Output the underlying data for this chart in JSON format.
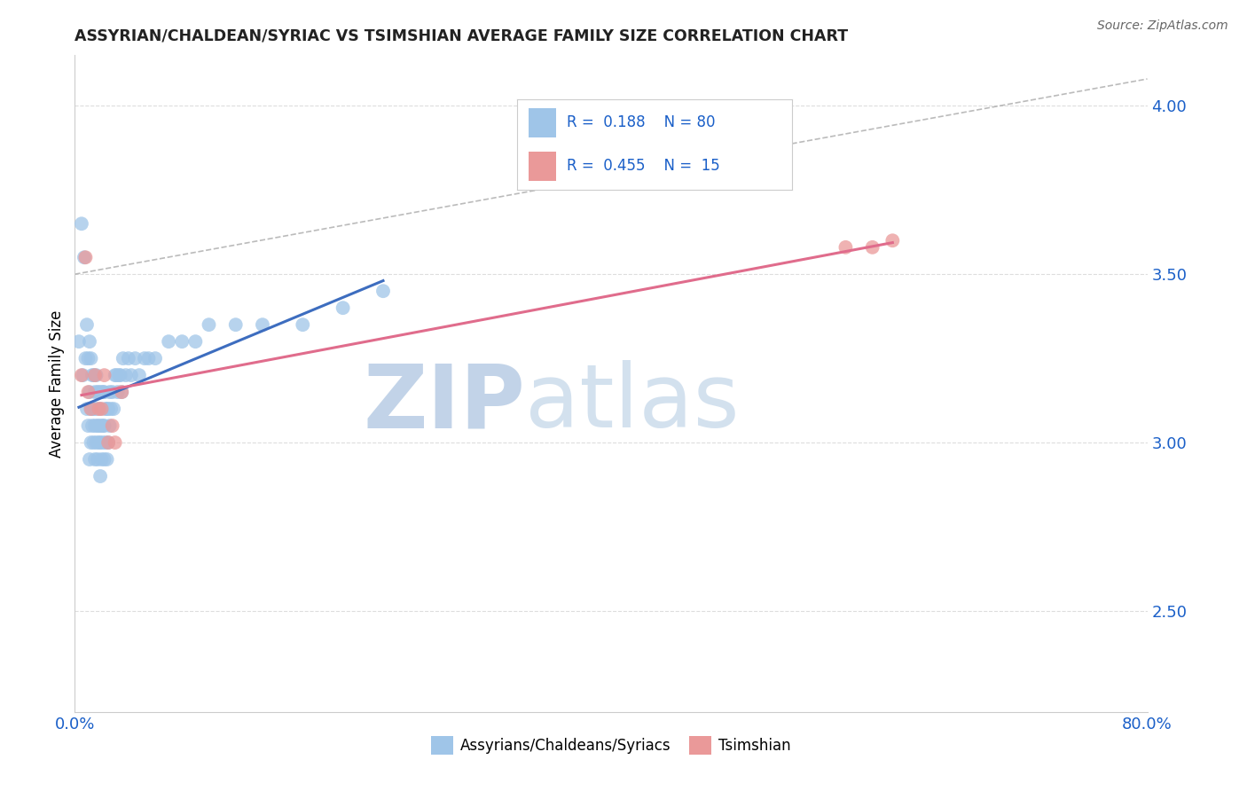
{
  "title": "ASSYRIAN/CHALDEAN/SYRIAC VS TSIMSHIAN AVERAGE FAMILY SIZE CORRELATION CHART",
  "source": "Source: ZipAtlas.com",
  "ylabel": "Average Family Size",
  "xlim": [
    0.0,
    0.8
  ],
  "ylim": [
    2.2,
    4.15
  ],
  "yticks_right": [
    2.5,
    3.0,
    3.5,
    4.0
  ],
  "blue_R": 0.188,
  "blue_N": 80,
  "pink_R": 0.455,
  "pink_N": 15,
  "blue_color": "#9fc5e8",
  "pink_color": "#ea9999",
  "blue_line_color": "#3d6dbf",
  "pink_line_color": "#e06c8c",
  "legend_label_blue": "Assyrians/Chaldeans/Syriacs",
  "legend_label_pink": "Tsimshian",
  "blue_scatter_x": [
    0.003,
    0.005,
    0.006,
    0.007,
    0.008,
    0.009,
    0.009,
    0.01,
    0.01,
    0.011,
    0.011,
    0.011,
    0.012,
    0.012,
    0.012,
    0.013,
    0.013,
    0.013,
    0.014,
    0.014,
    0.014,
    0.015,
    0.015,
    0.015,
    0.016,
    0.016,
    0.016,
    0.017,
    0.017,
    0.017,
    0.018,
    0.018,
    0.018,
    0.019,
    0.019,
    0.019,
    0.02,
    0.02,
    0.02,
    0.021,
    0.021,
    0.021,
    0.022,
    0.022,
    0.022,
    0.023,
    0.023,
    0.024,
    0.024,
    0.025,
    0.025,
    0.026,
    0.026,
    0.027,
    0.028,
    0.029,
    0.03,
    0.031,
    0.032,
    0.033,
    0.034,
    0.035,
    0.036,
    0.038,
    0.04,
    0.042,
    0.045,
    0.048,
    0.052,
    0.055,
    0.06,
    0.07,
    0.08,
    0.09,
    0.1,
    0.12,
    0.14,
    0.17,
    0.2,
    0.23
  ],
  "blue_scatter_y": [
    3.3,
    3.65,
    3.2,
    3.55,
    3.25,
    3.1,
    3.35,
    3.05,
    3.25,
    2.95,
    3.15,
    3.3,
    3.0,
    3.1,
    3.25,
    3.05,
    3.1,
    3.2,
    3.0,
    3.1,
    3.2,
    2.95,
    3.05,
    3.15,
    3.0,
    3.1,
    3.2,
    2.95,
    3.05,
    3.15,
    3.0,
    3.05,
    3.15,
    2.9,
    3.0,
    3.1,
    2.95,
    3.05,
    3.15,
    3.0,
    3.05,
    3.15,
    2.95,
    3.05,
    3.15,
    3.0,
    3.1,
    2.95,
    3.1,
    3.0,
    3.1,
    3.05,
    3.15,
    3.1,
    3.15,
    3.1,
    3.2,
    3.2,
    3.15,
    3.2,
    3.2,
    3.15,
    3.25,
    3.2,
    3.25,
    3.2,
    3.25,
    3.2,
    3.25,
    3.25,
    3.25,
    3.3,
    3.3,
    3.3,
    3.35,
    3.35,
    3.35,
    3.35,
    3.4,
    3.45
  ],
  "pink_scatter_x": [
    0.005,
    0.008,
    0.01,
    0.012,
    0.015,
    0.018,
    0.02,
    0.022,
    0.025,
    0.028,
    0.03,
    0.035,
    0.575,
    0.595,
    0.61
  ],
  "pink_scatter_y": [
    3.2,
    3.55,
    3.15,
    3.1,
    3.2,
    3.1,
    3.1,
    3.2,
    3.0,
    3.05,
    3.0,
    3.15,
    3.58,
    3.58,
    3.6
  ],
  "watermark_zip": "ZIP",
  "watermark_atlas": "atlas",
  "watermark_color_zip": "#b8cce4",
  "watermark_color_atlas": "#c8d8e8",
  "background_color": "#ffffff",
  "grid_color": "#dddddd",
  "dash_line_color": "#aaaaaa"
}
